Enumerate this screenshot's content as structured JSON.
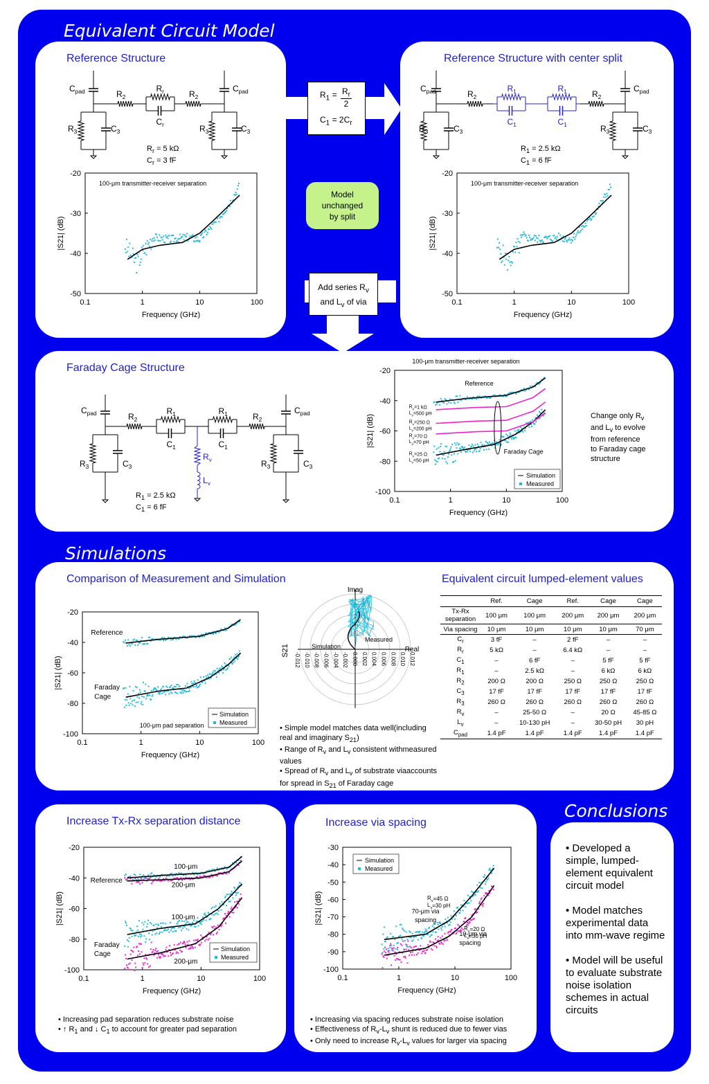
{
  "sections": {
    "equivalent": "Equivalent Circuit Model",
    "simulations": "Simulations",
    "conclusions": "Conclusions"
  },
  "colors": {
    "background": "#0000ee",
    "panel": "#ffffff",
    "title": "#1f1fd0",
    "measured": "#22bbdd",
    "simulation": "#000000",
    "magenta": "#ee22cc",
    "note": "#c6f28c"
  },
  "ref_panel": {
    "title": "Reference Structure",
    "circuit": {
      "cpad": "C",
      "cpad_sub": "pad",
      "r2": "R",
      "r2_sub": "2",
      "rr": "R",
      "rr_sub": "r",
      "cr": "C",
      "cr_sub": "r",
      "r3": "R",
      "r3_sub": "3",
      "c3": "C",
      "c3_sub": "3",
      "val1": "R",
      "val1_sub": "r",
      "val1_rest": " = 5 kΩ",
      "val2": "C",
      "val2_sub": "r",
      "val2_rest": " = 3 fF"
    }
  },
  "split_panel": {
    "title": "Reference Structure with center split",
    "circuit": {
      "r1": "R",
      "r1_sub": "1",
      "c1": "C",
      "c1_sub": "1",
      "val1": "R",
      "val1_sub": "1",
      "val1_rest": " = 2.5 kΩ",
      "val2": "C",
      "val2_sub": "1",
      "val2_rest": " = 6 fF"
    }
  },
  "arrow_box": {
    "r1": "R",
    "r1_sub": "1",
    "eq": " = ",
    "num": "R",
    "num_sub": "r",
    "den": "2",
    "c1": "C",
    "c1_sub": "1",
    "c1_rest": " = 2C",
    "c1_rest_sub": "r"
  },
  "model_note": [
    "Model",
    "unchanged",
    "by split"
  ],
  "add_series": {
    "line1": "Add series R",
    "line1_sub": "v",
    "line2a": "and L",
    "line2_sub": "v",
    "line2b": " of via"
  },
  "faraday_panel": {
    "title": "Faraday Cage Structure",
    "circuit": {
      "rv": "R",
      "rv_sub": "v",
      "lv": "L",
      "lv_sub": "v",
      "val1": "R",
      "val1_sub": "1",
      "val1_rest": " = 2.5 kΩ",
      "val2": "C",
      "val2_sub": "1",
      "val2_rest": " = 6 fF"
    },
    "note": [
      "Change only R",
      "and L",
      "to evolve",
      "from reference",
      "to Faraday cage",
      "structure"
    ],
    "note_sub": "v"
  },
  "charts": {
    "ref": {
      "title": "100-μm transmitter-receiver separation",
      "ylabel": "|S21| (dB)",
      "xlabel": "Frequency (GHz)",
      "yticks": [
        "-20",
        "-30",
        "-40",
        "-50"
      ],
      "xticks": [
        "0.1",
        "1",
        "10",
        "100"
      ]
    },
    "split": {
      "title": "100-μm transmitter-receiver separation",
      "ylabel": "|S21| (dB)",
      "xlabel": "Frequency (GHz)",
      "yticks": [
        "-20",
        "-30",
        "-40",
        "-50"
      ],
      "xticks": [
        "0.1",
        "1",
        "10",
        "100"
      ]
    },
    "faraday": {
      "title": "100-μm transmitter-receiver separation",
      "ylabel": "|S21| (dB)",
      "xlabel": "Frequency (GHz)",
      "yticks": [
        "-20",
        "-40",
        "-60",
        "-80",
        "-100"
      ],
      "xticks": [
        "0.1",
        "1",
        "10",
        "100"
      ],
      "labels": [
        "Reference",
        "Faraday Cage"
      ],
      "ann": [
        [
          "R",
          "v",
          "=1 kΩ"
        ],
        [
          "L",
          "v",
          "=500 pH"
        ],
        [
          "R",
          "v",
          "=250 Ω"
        ],
        [
          "L",
          "v",
          "=200 pH"
        ],
        [
          "R",
          "v",
          "=70 Ω"
        ],
        [
          "L",
          "v",
          "=70 pH"
        ],
        [
          "R",
          "v",
          "=25 Ω"
        ],
        [
          "L",
          "v",
          "=50 pH"
        ]
      ],
      "legend": [
        "Simulation",
        "Measured"
      ]
    },
    "compare": {
      "ylabel": "|S21| (dB)",
      "xlabel": "Frequency (GHz)",
      "yticks": [
        "-20",
        "-40",
        "-60",
        "-80",
        "-100"
      ],
      "xticks": [
        "0.1",
        "1",
        "10",
        "100"
      ],
      "labels": [
        "Reference",
        "Faraday",
        "Cage",
        "100-μm pad separation"
      ],
      "legend": [
        "Simulation",
        "Measured"
      ]
    },
    "polar": {
      "imag": "Imag",
      "real": "Real",
      "ylabel": "S21",
      "measured": "Measured",
      "simulation": "Simulation",
      "ticks": [
        "-0.012",
        "-0.010",
        "-0.008",
        "-0.006",
        "-0.004",
        "-0.002",
        "0.000",
        "0.002",
        "0.004",
        "0.006",
        "0.008",
        "0.010",
        "0.012"
      ]
    },
    "txrx": {
      "ylabel": "|S21| (dB)",
      "xlabel": "Frequency (GHz)",
      "yticks": [
        "-20",
        "-40",
        "-60",
        "-80",
        "-100"
      ],
      "xticks": [
        "0.1",
        "1",
        "10",
        "100"
      ],
      "labels": [
        "100-μm",
        "200-μm",
        "Reference",
        "100-μm",
        "Faraday",
        "Cage",
        "200-μm"
      ],
      "legend": [
        "Simulation",
        "Measured"
      ]
    },
    "via": {
      "ylabel": "|S21| (dB)",
      "xlabel": "Frequency (GHz)",
      "yticks": [
        "-30",
        "-40",
        "-50",
        "-60",
        "-70",
        "-80",
        "-90",
        "-100"
      ],
      "xticks": [
        "0.1",
        "1",
        "10",
        "100"
      ],
      "legend": [
        "Simulation",
        "Measured"
      ],
      "ann": [
        [
          "R",
          "v",
          "=45 Ω"
        ],
        [
          "L",
          "v",
          "=30 pH"
        ],
        [
          "R",
          "v",
          "=20 Ω"
        ],
        [
          "L",
          "v",
          "=30 pH"
        ]
      ],
      "labels": [
        "70-μm via",
        "spacing",
        "10-μm via",
        "spacing"
      ]
    }
  },
  "compare_panel": {
    "title": "Comparison of Measurement and Simulation",
    "bullets": [
      [
        "• Simple model matches data well",
        "(including real and imaginary S",
        {
          "sub": "21"
        },
        ")"
      ],
      [
        "• Range of R",
        {
          "sub": "v"
        },
        " and L",
        {
          "sub": "v"
        },
        " consistent with",
        "measured values"
      ],
      [
        "• Spread of R",
        {
          "sub": "v"
        },
        " and L",
        {
          "sub": "v"
        },
        " of substrate via",
        "accounts for spread in S",
        {
          "sub": "21"
        },
        " of Faraday cage"
      ]
    ]
  },
  "table_panel": {
    "title": "Equivalent circuit lumped-element values",
    "header": [
      "",
      "Ref.",
      "Cage",
      "Ref.",
      "Cage",
      "Cage"
    ],
    "rows": [
      {
        "label": "Tx-Rx separation",
        "cells": [
          "100 μm",
          "100 μm",
          "200 μm",
          "200 μm",
          "200 μm"
        ],
        "sep": true
      },
      {
        "label": "Via spacing",
        "cells": [
          "10 μm",
          "10 μm",
          "10 μm",
          "10 μm",
          "70 μm"
        ],
        "sep": true
      },
      {
        "label": "C",
        "sub": "r",
        "cells": [
          "3 fF",
          "–",
          "2 fF",
          "–",
          "–"
        ]
      },
      {
        "label": "R",
        "sub": "r",
        "cells": [
          "5 kΩ",
          "–",
          "6.4 kΩ",
          "–",
          "–"
        ]
      },
      {
        "label": "C",
        "sub": "1",
        "cells": [
          "–",
          "6 fF",
          "–",
          "5 fF",
          "5 fF"
        ]
      },
      {
        "label": "R",
        "sub": "1",
        "cells": [
          "–",
          "2.5 kΩ",
          "–",
          "6 kΩ",
          "6 kΩ"
        ]
      },
      {
        "label": "R",
        "sub": "2",
        "cells": [
          "200 Ω",
          "200 Ω",
          "250 Ω",
          "250 Ω",
          "250 Ω"
        ]
      },
      {
        "label": "C",
        "sub": "3",
        "cells": [
          "17 fF",
          "17 fF",
          "17 fF",
          "17 fF",
          "17 fF"
        ]
      },
      {
        "label": "R",
        "sub": "3",
        "cells": [
          "260 Ω",
          "260 Ω",
          "260 Ω",
          "260 Ω",
          "260 Ω"
        ]
      },
      {
        "label": "R",
        "sub": "v",
        "cells": [
          "–",
          "25-50 Ω",
          "–",
          "20 Ω",
          "45-85 Ω"
        ]
      },
      {
        "label": "L",
        "sub": "v",
        "cells": [
          "–",
          "10-130 pH",
          "–",
          "30-50 pH",
          "30 pH"
        ]
      },
      {
        "label": "C",
        "sub": "pad",
        "cells": [
          "1.4 pF",
          "1.4 pF",
          "1.4 pF",
          "1.4 pF",
          "1.4 pF"
        ],
        "last": true
      }
    ]
  },
  "txrx_panel": {
    "title": "Increase Tx-Rx separation distance",
    "bullets": [
      [
        "• Increasing pad separation reduces substrate noise"
      ],
      [
        "• ↑ R",
        {
          "sub": "1"
        },
        " and ↓ C",
        {
          "sub": "1"
        },
        " to account for greater pad separation"
      ]
    ]
  },
  "via_panel": {
    "title": "Increase via spacing",
    "bullets": [
      [
        "• Increasing via spacing reduces substrate noise isolation"
      ],
      [
        "• Effectiveness of R",
        {
          "sub": "v"
        },
        "-L",
        {
          "sub": "v"
        },
        " shunt is reduced due to fewer vias"
      ],
      [
        "• Only need to increase R",
        {
          "sub": "v"
        },
        "-L",
        {
          "sub": "v"
        },
        " values for larger via spacing"
      ]
    ]
  },
  "conclusions": [
    "• Developed a simple, lumped-element equivalent circuit model",
    "• Model matches experimental data into mm-wave regime",
    "• Model will be useful to evaluate substrate noise isolation schemes in actual circuits"
  ]
}
